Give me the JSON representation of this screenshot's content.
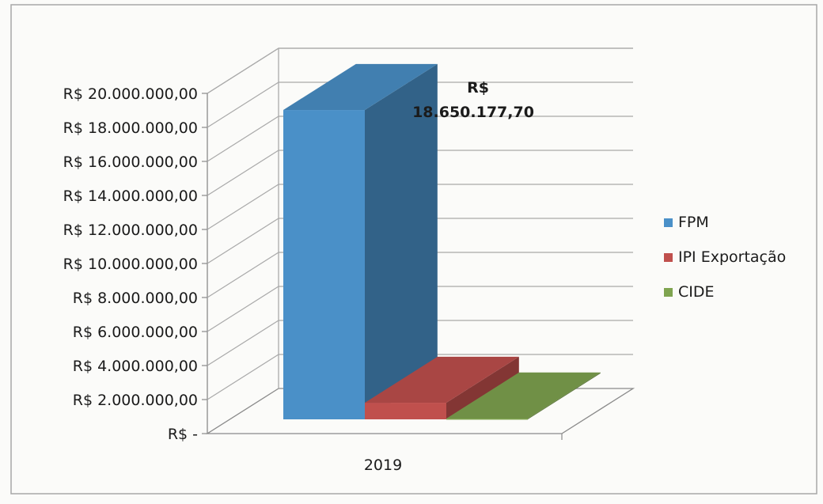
{
  "chart_data": {
    "type": "bar",
    "categories": [
      "2019"
    ],
    "series": [
      {
        "name": "FPM",
        "values": [
          18650177.7
        ],
        "color": "#4a90c8"
      },
      {
        "name": "IPI Exportação",
        "values": [
          1000000
        ],
        "color": "#c0504d"
      },
      {
        "name": "CIDE",
        "values": [
          50000
        ],
        "color": "#7fa450"
      }
    ],
    "ylim": [
      0,
      20000000
    ],
    "ytick_values": [
      0,
      2000000,
      4000000,
      6000000,
      8000000,
      10000000,
      12000000,
      14000000,
      16000000,
      18000000,
      20000000
    ],
    "ytick_labels": [
      "R$ -",
      "R$ 2.000.000,00",
      "R$ 4.000.000,00",
      "R$ 6.000.000,00",
      "R$ 8.000.000,00",
      "R$ 10.000.000,00",
      "R$ 12.000.000,00",
      "R$ 14.000.000,00",
      "R$ 16.000.000,00",
      "R$ 18.000.000,00",
      "R$ 20.000.000,00"
    ],
    "data_label": {
      "series": "FPM",
      "line1": "R$",
      "line2": "18.650.177,70"
    },
    "grid": true,
    "legend_position": "right",
    "projection": "3d"
  }
}
